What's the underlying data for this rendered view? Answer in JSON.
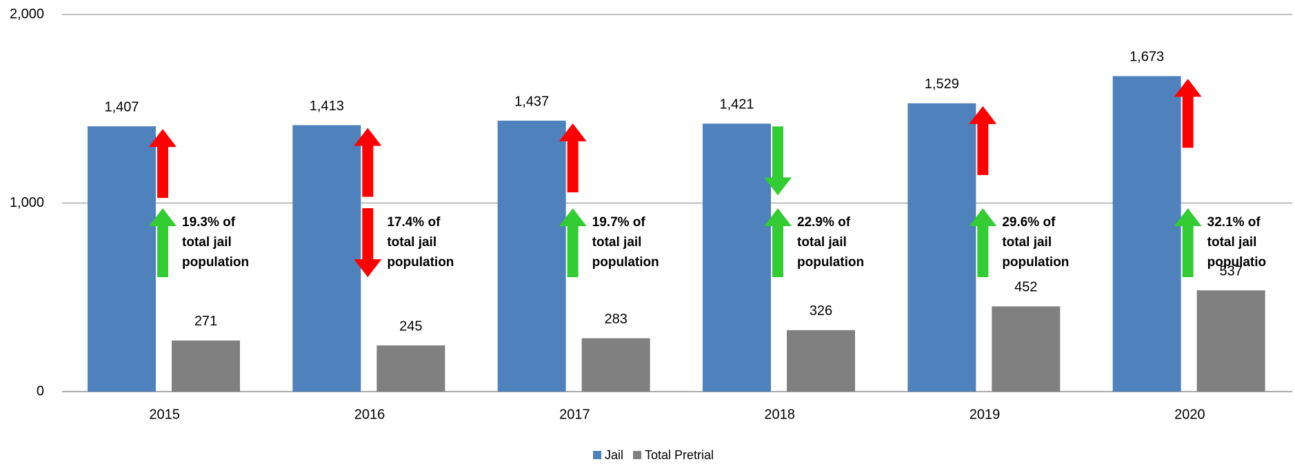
{
  "chart_data": {
    "type": "bar",
    "categories": [
      "2015",
      "2016",
      "2017",
      "2018",
      "2019",
      "2020"
    ],
    "series": [
      {
        "name": "Jail",
        "color": "#4f81bd",
        "values": [
          1407,
          1413,
          1437,
          1421,
          1529,
          1673
        ],
        "value_labels": [
          "1,407",
          "1,413",
          "1,437",
          "1,421",
          "1,529",
          "1,673"
        ]
      },
      {
        "name": "Total Pretrial",
        "color": "#808080",
        "values": [
          271,
          245,
          283,
          326,
          452,
          537
        ]
      }
    ],
    "ylim": [
      0,
      2000
    ],
    "yticks": [
      {
        "value": 0,
        "label": "0"
      },
      {
        "value": 1000,
        "label": "1,000"
      },
      {
        "value": 2000,
        "label": "2,000"
      }
    ],
    "grid": true,
    "legend": "bottom",
    "annotations": [
      [
        "19.3% of",
        "total jail",
        "population"
      ],
      [
        "17.4% of",
        "total jail",
        "population"
      ],
      [
        "19.7% of",
        "total jail",
        "population"
      ],
      [
        "22.9% of",
        "total jail",
        "population"
      ],
      [
        "29.6% of",
        "total jail",
        "population"
      ],
      [
        "32.1% of",
        "total jail",
        "populatio"
      ]
    ],
    "arrows": [
      [
        {
          "direction": "up",
          "color": "#ff0000"
        },
        {
          "direction": "up",
          "color": "#33cc33"
        }
      ],
      [
        {
          "direction": "up",
          "color": "#ff0000"
        },
        {
          "direction": "down",
          "color": "#ff0000"
        }
      ],
      [
        {
          "direction": "up",
          "color": "#ff0000"
        },
        {
          "direction": "up",
          "color": "#33cc33"
        }
      ],
      [
        {
          "direction": "down",
          "color": "#33cc33"
        },
        {
          "direction": "up",
          "color": "#33cc33"
        }
      ],
      [
        {
          "direction": "up",
          "color": "#ff0000"
        },
        {
          "direction": "up",
          "color": "#33cc33"
        }
      ],
      [
        {
          "direction": "up",
          "color": "#ff0000"
        },
        {
          "direction": "up",
          "color": "#33cc33"
        }
      ]
    ]
  }
}
